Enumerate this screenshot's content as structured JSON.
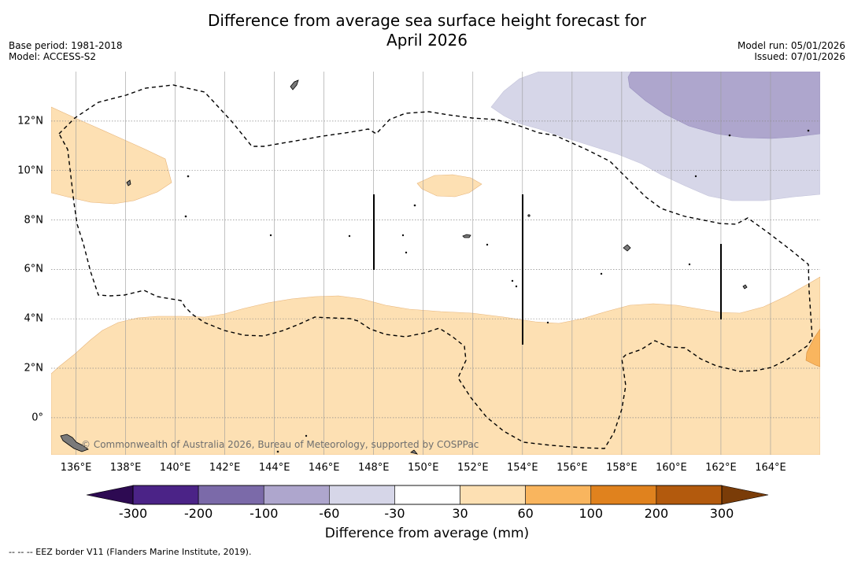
{
  "title_line1": "Difference from average sea surface height forecast for",
  "title_line2": "April 2026",
  "base_period": "Base period: 1981-2018",
  "model": "Model: ACCESS-S2",
  "model_run": "Model run: 05/01/2026",
  "issued": "Issued: 07/01/2026",
  "copyright": "© Commonwealth of Australia 2026, Bureau of Meteorology, supported by COSPPac",
  "footer": "--  --  -- EEZ border V11 (Flanders Marine Institute, 2019).",
  "map": {
    "lon_range": [
      135,
      166
    ],
    "lat_range": [
      -1.5,
      14
    ],
    "x_ticks": [
      {
        "value": 136,
        "label": "136°E"
      },
      {
        "value": 138,
        "label": "138°E"
      },
      {
        "value": 140,
        "label": "140°E"
      },
      {
        "value": 142,
        "label": "142°E"
      },
      {
        "value": 144,
        "label": "144°E"
      },
      {
        "value": 146,
        "label": "146°E"
      },
      {
        "value": 148,
        "label": "148°E"
      },
      {
        "value": 150,
        "label": "150°E"
      },
      {
        "value": 152,
        "label": "152°E"
      },
      {
        "value": 154,
        "label": "154°E"
      },
      {
        "value": 156,
        "label": "156°E"
      },
      {
        "value": 158,
        "label": "158°E"
      },
      {
        "value": 160,
        "label": "160°E"
      },
      {
        "value": 162,
        "label": "162°E"
      },
      {
        "value": 164,
        "label": "164°E"
      }
    ],
    "y_ticks": [
      {
        "value": 0,
        "label": "0°"
      },
      {
        "value": 2,
        "label": "2°N"
      },
      {
        "value": 4,
        "label": "4°N"
      },
      {
        "value": 6,
        "label": "6°N"
      },
      {
        "value": 8,
        "label": "8°N"
      },
      {
        "value": 10,
        "label": "10°N"
      },
      {
        "value": 12,
        "label": "12°N"
      }
    ]
  },
  "colorbar": {
    "ticks": [
      "-300",
      "-200",
      "-100",
      "-60",
      "-30",
      "30",
      "60",
      "100",
      "200",
      "300"
    ],
    "colors": [
      "#4b2387",
      "#7b6aa9",
      "#aea6cd",
      "#d6d6e8",
      "#ffffff",
      "#fde0b3",
      "#f9b55e",
      "#e0821e",
      "#b35a0d"
    ],
    "under_color": "#2d0a52",
    "over_color": "#7a3c08",
    "label": "Difference from average (mm)"
  }
}
